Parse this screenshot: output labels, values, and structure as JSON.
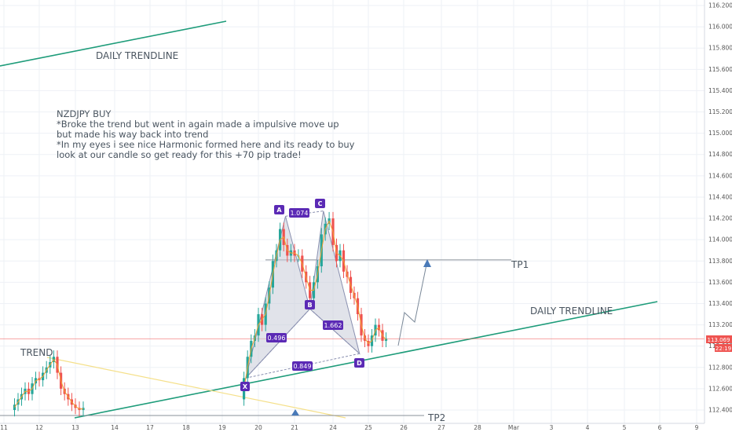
{
  "colors": {
    "background": "#ffffff",
    "grid": "#eef1f6",
    "up_candle": "#26a69a",
    "down_candle": "#ef5350",
    "trendline": "#1e9c7a",
    "pattern_fill": "#c9ccd8",
    "pattern_stroke": "#8a90b0",
    "label_bg": "#5b2ab5",
    "current_price": "#ef5350",
    "target_line": "#8a9099",
    "arrow": "#4a7ab8",
    "yellow_line": "#f5e08a",
    "ma_line": "#f0a030"
  },
  "annotations": {
    "daily_trendline_top": "DAILY TRENDLINE",
    "daily_trendline_bottom": "DAILY TRENDLINE",
    "trend": "TREND",
    "tp1": "TP1",
    "tp2": "TP2",
    "note_lines": [
      "NZDJPY BUY",
      "*Broke the trend but went in again made a impulsive move up",
      "but made his way back into trend",
      "*In my eyes i see nice Harmonic formed here and its ready to buy",
      "look at our candle so get ready for this +70 pip trade!"
    ]
  },
  "harmonic": {
    "points": [
      "A",
      "B",
      "C",
      "D",
      "X"
    ],
    "ratios": {
      "ac": "1.074",
      "xb": "0.496",
      "bd": "1.662",
      "xd": "0.849"
    }
  },
  "price_tags": {
    "current": "113.069",
    "countdown": "22:19"
  },
  "chart_data": {
    "type": "candlestick",
    "symbol": "NZDJPY",
    "y_axis": {
      "ylim": [
        112.38,
        116.25
      ],
      "ticks": [
        "116.200",
        "116.000",
        "115.800",
        "115.600",
        "115.400",
        "115.200",
        "115.000",
        "114.800",
        "114.600",
        "114.400",
        "114.200",
        "114.000",
        "113.800",
        "113.600",
        "113.400",
        "113.200",
        "113.000",
        "112.800",
        "112.600",
        "112.400"
      ],
      "tick_values": [
        116.2,
        116.0,
        115.8,
        115.6,
        115.4,
        115.2,
        115.0,
        114.8,
        114.6,
        114.4,
        114.2,
        114.0,
        113.8,
        113.6,
        113.4,
        113.2,
        113.0,
        112.8,
        112.6,
        112.4
      ]
    },
    "x_axis": {
      "ticks": [
        "11",
        "12",
        "13",
        "14",
        "17",
        "18",
        "19",
        "20",
        "21",
        "24",
        "25",
        "26",
        "27",
        "28",
        "Mar",
        "3",
        "4",
        "5",
        "6",
        "9"
      ],
      "tick_index": [
        0,
        1,
        2,
        3,
        4,
        5,
        6,
        7,
        8,
        9,
        10,
        11,
        12,
        13,
        14,
        15,
        16,
        17,
        18,
        19
      ]
    },
    "current_price": 113.069,
    "tp1": 113.81,
    "harmonic_points": {
      "X": {
        "day": 6.65,
        "price": 112.7
      },
      "A": {
        "day": 7.75,
        "price": 114.22
      },
      "B": {
        "day": 8.4,
        "price": 113.35
      },
      "C": {
        "day": 8.75,
        "price": 114.27
      },
      "D": {
        "day": 9.75,
        "price": 112.93
      }
    },
    "candles_days": [
      0.3,
      0.4,
      0.5,
      0.6,
      0.7,
      0.8,
      0.9,
      1.0,
      1.1,
      1.2,
      1.3,
      1.4,
      1.5,
      1.6,
      1.7,
      1.8,
      1.9,
      2.0,
      2.1,
      2.2,
      6.6,
      6.7,
      6.8,
      6.9,
      7.0,
      7.1,
      7.2,
      7.3,
      7.4,
      7.5,
      7.6,
      7.7,
      7.8,
      7.9,
      8.0,
      8.1,
      8.2,
      8.3,
      8.4,
      8.5,
      8.6,
      8.7,
      8.8,
      8.9,
      9.0,
      9.1,
      9.2,
      9.3,
      9.4,
      9.5,
      9.6,
      9.7,
      9.8,
      9.9,
      10.0,
      10.1,
      10.2,
      10.3,
      10.4,
      10.5
    ],
    "candles_open": [
      112.4,
      112.45,
      112.5,
      112.55,
      112.6,
      112.55,
      112.65,
      112.7,
      112.68,
      112.75,
      112.8,
      112.85,
      112.9,
      112.75,
      112.6,
      112.55,
      112.5,
      112.45,
      112.42,
      112.4,
      112.5,
      112.7,
      112.9,
      113.05,
      113.1,
      113.3,
      113.2,
      113.4,
      113.55,
      113.8,
      113.9,
      114.1,
      113.95,
      113.85,
      113.9,
      113.85,
      113.85,
      113.7,
      113.6,
      113.45,
      113.6,
      113.75,
      114.05,
      114.15,
      114.2,
      113.95,
      113.8,
      113.9,
      113.7,
      113.65,
      113.5,
      113.45,
      113.3,
      113.1,
      113.05,
      113.0,
      113.1,
      113.2,
      113.15,
      113.05
    ],
    "candles_close": [
      112.45,
      112.5,
      112.55,
      112.6,
      112.55,
      112.65,
      112.7,
      112.68,
      112.75,
      112.8,
      112.85,
      112.9,
      112.75,
      112.6,
      112.55,
      112.5,
      112.45,
      112.42,
      112.4,
      112.42,
      112.7,
      112.9,
      113.05,
      113.1,
      113.3,
      113.2,
      113.4,
      113.55,
      113.8,
      113.9,
      114.1,
      113.95,
      113.85,
      113.9,
      113.85,
      113.85,
      113.7,
      113.6,
      113.45,
      113.6,
      113.75,
      114.05,
      114.15,
      114.2,
      113.95,
      113.8,
      113.9,
      113.7,
      113.65,
      113.5,
      113.45,
      113.3,
      113.1,
      113.05,
      113.0,
      113.1,
      113.2,
      113.15,
      113.05,
      113.07
    ]
  }
}
